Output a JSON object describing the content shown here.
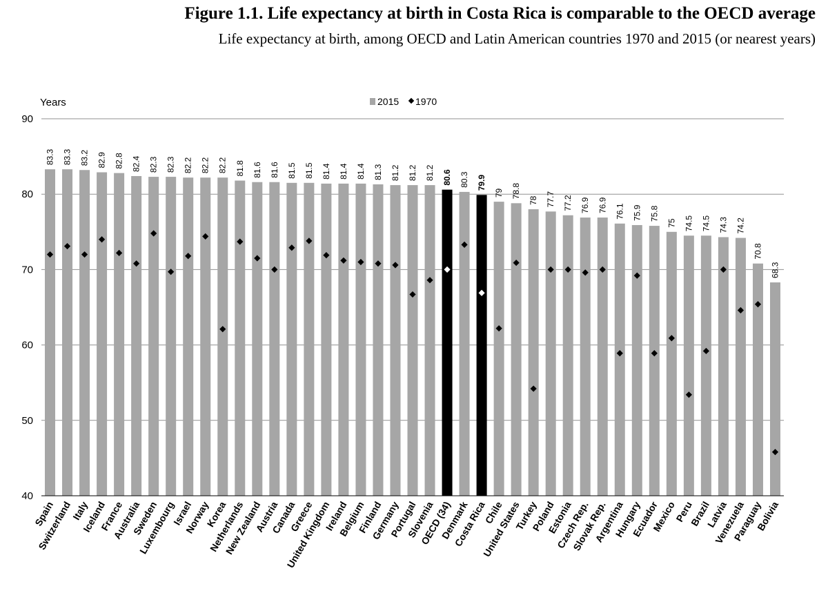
{
  "figure": {
    "title": "Figure 1.1. Life expectancy at birth in Costa Rica is comparable to the OECD average",
    "subtitle": "Life expectancy at birth, among OECD and Latin American countries 1970 and 2015 (or nearest years)"
  },
  "colors": {
    "bar": "#a6a6a6",
    "highlight_bar": "#000000",
    "marker": "#000000",
    "highlight_marker": "#ffffff",
    "grid": "#909090"
  },
  "chart_data": {
    "type": "bar",
    "ylabel": "Years",
    "ylim": [
      40,
      90
    ],
    "yticks": [
      40,
      50,
      60,
      70,
      80,
      90
    ],
    "grid": true,
    "legend_position": "top-center",
    "legend": [
      {
        "label": "2015",
        "kind": "bar"
      },
      {
        "label": "1970",
        "kind": "diamond"
      }
    ],
    "categories": [
      "Spain",
      "Switzerland",
      "Italy",
      "Iceland",
      "France",
      "Australia",
      "Sweden",
      "Luxembourg",
      "Israel",
      "Norway",
      "Korea",
      "Netherlands",
      "New Zealand",
      "Austria",
      "Canada",
      "Greece",
      "United Kingdom",
      "Ireland",
      "Belgium",
      "Finland",
      "Germany",
      "Portugal",
      "Slovenia",
      "OECD (34)",
      "Denmark",
      "Costa Rica",
      "Chile",
      "United States",
      "Turkey",
      "Poland",
      "Estonia",
      "Czech Rep.",
      "Slovak Rep.",
      "Argentina",
      "Hungary",
      "Ecuador",
      "Mexico",
      "Peru",
      "Brazil",
      "Latvia",
      "Venezuela",
      "Paraguay",
      "Bolivia"
    ],
    "highlight": [
      "OECD (34)",
      "Costa Rica"
    ],
    "series": [
      {
        "name": "2015",
        "values": [
          83.3,
          83.3,
          83.2,
          82.9,
          82.8,
          82.4,
          82.3,
          82.3,
          82.2,
          82.2,
          82.2,
          81.8,
          81.6,
          81.6,
          81.5,
          81.5,
          81.4,
          81.4,
          81.4,
          81.3,
          81.2,
          81.2,
          81.2,
          80.6,
          80.3,
          79.9,
          79,
          78.8,
          78,
          77.7,
          77.2,
          76.9,
          76.9,
          76.1,
          75.9,
          75.8,
          75,
          74.5,
          74.5,
          74.3,
          74.2,
          70.8,
          68.3
        ],
        "labels": [
          "83.3",
          "83.3",
          "83.2",
          "82.9",
          "82.8",
          "82.4",
          "82.3",
          "82.3",
          "82.2",
          "82.2",
          "82.2",
          "81.8",
          "81.6",
          "81.6",
          "81.5",
          "81.5",
          "81.4",
          "81.4",
          "81.4",
          "81.3",
          "81.2",
          "81.2",
          "81.2",
          "80.6",
          "80.3",
          "79.9",
          "79",
          "78.8",
          "78",
          "77.7",
          "77.2",
          "76.9",
          "76.9",
          "76.1",
          "75.9",
          "75.8",
          "75",
          "74.5",
          "74.5",
          "74.3",
          "74.2",
          "70.8",
          "68.3"
        ]
      },
      {
        "name": "1970",
        "values": [
          72.0,
          73.1,
          72.0,
          74.0,
          72.2,
          70.8,
          74.8,
          69.7,
          71.8,
          74.4,
          62.1,
          73.7,
          71.5,
          70.0,
          72.9,
          73.8,
          71.9,
          71.2,
          71.0,
          70.8,
          70.6,
          66.7,
          68.6,
          70.0,
          73.3,
          66.9,
          62.2,
          70.9,
          54.2,
          70.0,
          70.0,
          69.6,
          70.0,
          58.9,
          69.2,
          58.9,
          60.9,
          53.4,
          59.2,
          70.0,
          64.6,
          65.4,
          45.8
        ]
      }
    ]
  }
}
